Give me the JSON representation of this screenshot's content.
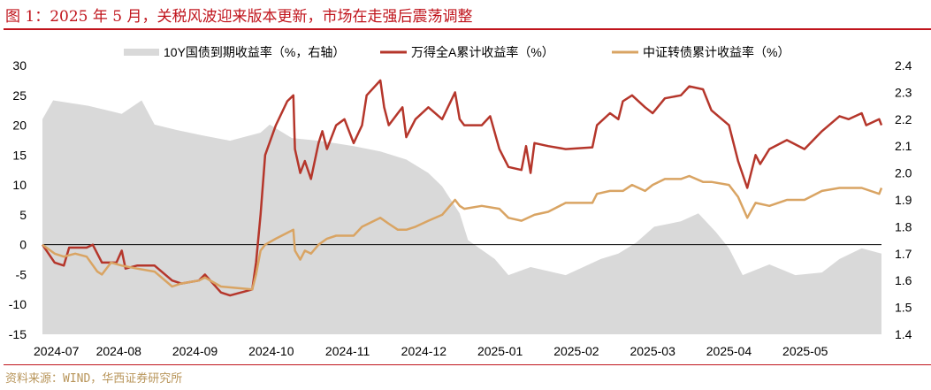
{
  "title": "图 1：2025 年 5 月，关税风波迎来版本更新，市场在走强后震荡调整",
  "source": "资料来源：WIND，华西证券研究所",
  "chart_data": {
    "type": "line",
    "x_unit": "months since 2024-07-01",
    "xticks": [
      "2024-07",
      "2024-08",
      "2024-09",
      "2024-10",
      "2024-11",
      "2024-12",
      "2025-01",
      "2025-02",
      "2025-03",
      "2025-04",
      "2025-05"
    ],
    "xlim": [
      0,
      11
    ],
    "ylim": [
      -15,
      30
    ],
    "yticks": [
      "30",
      "25",
      "20",
      "15",
      "10",
      "5",
      "0",
      "-5",
      "-10",
      "-15"
    ],
    "y2lim": [
      1.4,
      2.4
    ],
    "y2ticks": [
      "2.4",
      "2.3",
      "2.2",
      "2.1",
      "2.0",
      "1.9",
      "1.8",
      "1.7",
      "1.6",
      "1.5",
      "1.4"
    ],
    "legend_position": "top",
    "series": [
      {
        "name": "10Y国债到期收益率（%，右轴）",
        "type": "area",
        "axis": "right",
        "color": "#d9d9d9",
        "points": [
          [
            0,
            2.2
          ],
          [
            0.14,
            2.27
          ],
          [
            0.6,
            2.25
          ],
          [
            1.04,
            2.22
          ],
          [
            1.3,
            2.27
          ],
          [
            1.47,
            2.18
          ],
          [
            1.76,
            2.16
          ],
          [
            2.09,
            2.14
          ],
          [
            2.46,
            2.12
          ],
          [
            2.86,
            2.15
          ],
          [
            2.98,
            2.18
          ],
          [
            3.27,
            2.13
          ],
          [
            3.62,
            2.12
          ],
          [
            4.08,
            2.1
          ],
          [
            4.43,
            2.08
          ],
          [
            4.77,
            2.05
          ],
          [
            5.06,
            2.0
          ],
          [
            5.24,
            1.95
          ],
          [
            5.47,
            1.85
          ],
          [
            5.58,
            1.75
          ],
          [
            5.93,
            1.68
          ],
          [
            6.11,
            1.62
          ],
          [
            6.4,
            1.65
          ],
          [
            6.86,
            1.62
          ],
          [
            7.09,
            1.65
          ],
          [
            7.32,
            1.68
          ],
          [
            7.55,
            1.7
          ],
          [
            7.78,
            1.74
          ],
          [
            8.02,
            1.8
          ],
          [
            8.37,
            1.82
          ],
          [
            8.6,
            1.85
          ],
          [
            8.83,
            1.78
          ],
          [
            9.0,
            1.72
          ],
          [
            9.18,
            1.62
          ],
          [
            9.53,
            1.66
          ],
          [
            9.87,
            1.62
          ],
          [
            10.22,
            1.63
          ],
          [
            10.45,
            1.68
          ],
          [
            10.74,
            1.72
          ],
          [
            11,
            1.7
          ]
        ]
      },
      {
        "name": "万得全A累计收益率（%）",
        "type": "line",
        "axis": "left",
        "color": "#b5362b",
        "points": [
          [
            0,
            0
          ],
          [
            0.16,
            -3
          ],
          [
            0.28,
            -3.5
          ],
          [
            0.35,
            -0.5
          ],
          [
            0.58,
            -0.5
          ],
          [
            0.66,
            0
          ],
          [
            0.78,
            -3
          ],
          [
            0.97,
            -3
          ],
          [
            1.04,
            -1
          ],
          [
            1.09,
            -4
          ],
          [
            1.24,
            -3.5
          ],
          [
            1.47,
            -3.5
          ],
          [
            1.7,
            -6
          ],
          [
            1.82,
            -6.5
          ],
          [
            2.05,
            -6
          ],
          [
            2.13,
            -5
          ],
          [
            2.34,
            -8
          ],
          [
            2.46,
            -8.5
          ],
          [
            2.75,
            -7.5
          ],
          [
            2.8,
            -3
          ],
          [
            2.86,
            5
          ],
          [
            2.92,
            15
          ],
          [
            3.06,
            20
          ],
          [
            3.21,
            24
          ],
          [
            3.29,
            25
          ],
          [
            3.31,
            16
          ],
          [
            3.38,
            12
          ],
          [
            3.44,
            14
          ],
          [
            3.52,
            11
          ],
          [
            3.62,
            17
          ],
          [
            3.67,
            19
          ],
          [
            3.73,
            16
          ],
          [
            3.85,
            20
          ],
          [
            3.96,
            21
          ],
          [
            4.08,
            17
          ],
          [
            4.19,
            20
          ],
          [
            4.25,
            25
          ],
          [
            4.43,
            27.5
          ],
          [
            4.48,
            23
          ],
          [
            4.54,
            20
          ],
          [
            4.66,
            22
          ],
          [
            4.72,
            23
          ],
          [
            4.77,
            18
          ],
          [
            4.89,
            21
          ],
          [
            5.06,
            23
          ],
          [
            5.24,
            21
          ],
          [
            5.41,
            25.5
          ],
          [
            5.47,
            21
          ],
          [
            5.53,
            20
          ],
          [
            5.76,
            20
          ],
          [
            5.87,
            21.5
          ],
          [
            5.99,
            16
          ],
          [
            6.11,
            13
          ],
          [
            6.28,
            12.5
          ],
          [
            6.34,
            16.5
          ],
          [
            6.4,
            12
          ],
          [
            6.45,
            17
          ],
          [
            6.63,
            16.5
          ],
          [
            6.86,
            16
          ],
          [
            7.21,
            16.3
          ],
          [
            7.27,
            20
          ],
          [
            7.44,
            22
          ],
          [
            7.55,
            21
          ],
          [
            7.61,
            24
          ],
          [
            7.73,
            25
          ],
          [
            7.9,
            23
          ],
          [
            8.0,
            22
          ],
          [
            8.16,
            24.5
          ],
          [
            8.37,
            25
          ],
          [
            8.48,
            26.5
          ],
          [
            8.66,
            26
          ],
          [
            8.77,
            22.5
          ],
          [
            9.0,
            20
          ],
          [
            9.12,
            14
          ],
          [
            9.24,
            9.5
          ],
          [
            9.35,
            15
          ],
          [
            9.41,
            13.5
          ],
          [
            9.53,
            16
          ],
          [
            9.76,
            17.5
          ],
          [
            9.99,
            16
          ],
          [
            10.22,
            19
          ],
          [
            10.45,
            21.5
          ],
          [
            10.57,
            21
          ],
          [
            10.74,
            22
          ],
          [
            10.8,
            20
          ],
          [
            10.97,
            21
          ],
          [
            11,
            20
          ]
        ]
      },
      {
        "name": "中证转债累计收益率（%）",
        "type": "line",
        "axis": "left",
        "color": "#d9a463",
        "points": [
          [
            0,
            0
          ],
          [
            0.16,
            -1.5
          ],
          [
            0.28,
            -2
          ],
          [
            0.43,
            -1.5
          ],
          [
            0.58,
            -2
          ],
          [
            0.72,
            -4.5
          ],
          [
            0.78,
            -5
          ],
          [
            0.9,
            -3
          ],
          [
            1.04,
            -3.5
          ],
          [
            1.24,
            -4
          ],
          [
            1.47,
            -4.5
          ],
          [
            1.7,
            -7
          ],
          [
            1.82,
            -6.5
          ],
          [
            2.05,
            -6
          ],
          [
            2.13,
            -5.5
          ],
          [
            2.34,
            -7
          ],
          [
            2.75,
            -7.5
          ],
          [
            2.8,
            -5
          ],
          [
            2.86,
            -1
          ],
          [
            2.92,
            0
          ],
          [
            3.06,
            1
          ],
          [
            3.29,
            2.5
          ],
          [
            3.31,
            -1
          ],
          [
            3.38,
            -2.5
          ],
          [
            3.44,
            -1
          ],
          [
            3.52,
            -1.5
          ],
          [
            3.62,
            0
          ],
          [
            3.73,
            1
          ],
          [
            3.85,
            1.5
          ],
          [
            4.08,
            1.5
          ],
          [
            4.19,
            3
          ],
          [
            4.43,
            4.5
          ],
          [
            4.54,
            3.5
          ],
          [
            4.66,
            2.5
          ],
          [
            4.77,
            2.5
          ],
          [
            4.89,
            3
          ],
          [
            5.06,
            4
          ],
          [
            5.24,
            5
          ],
          [
            5.41,
            7.5
          ],
          [
            5.47,
            6.5
          ],
          [
            5.53,
            6
          ],
          [
            5.76,
            6.5
          ],
          [
            5.99,
            6
          ],
          [
            6.11,
            4.5
          ],
          [
            6.28,
            4
          ],
          [
            6.45,
            5
          ],
          [
            6.63,
            5.5
          ],
          [
            6.86,
            7
          ],
          [
            7.21,
            7
          ],
          [
            7.27,
            8.5
          ],
          [
            7.44,
            9
          ],
          [
            7.61,
            9
          ],
          [
            7.73,
            10
          ],
          [
            7.9,
            9
          ],
          [
            8.0,
            10
          ],
          [
            8.16,
            11
          ],
          [
            8.37,
            11
          ],
          [
            8.48,
            11.5
          ],
          [
            8.66,
            10.5
          ],
          [
            8.77,
            10.5
          ],
          [
            9.0,
            10
          ],
          [
            9.12,
            8
          ],
          [
            9.24,
            4.5
          ],
          [
            9.35,
            7
          ],
          [
            9.53,
            6.5
          ],
          [
            9.76,
            7.5
          ],
          [
            9.99,
            7.5
          ],
          [
            10.22,
            9
          ],
          [
            10.45,
            9.5
          ],
          [
            10.74,
            9.5
          ],
          [
            10.97,
            8.5
          ],
          [
            11,
            9.5
          ]
        ]
      }
    ]
  }
}
